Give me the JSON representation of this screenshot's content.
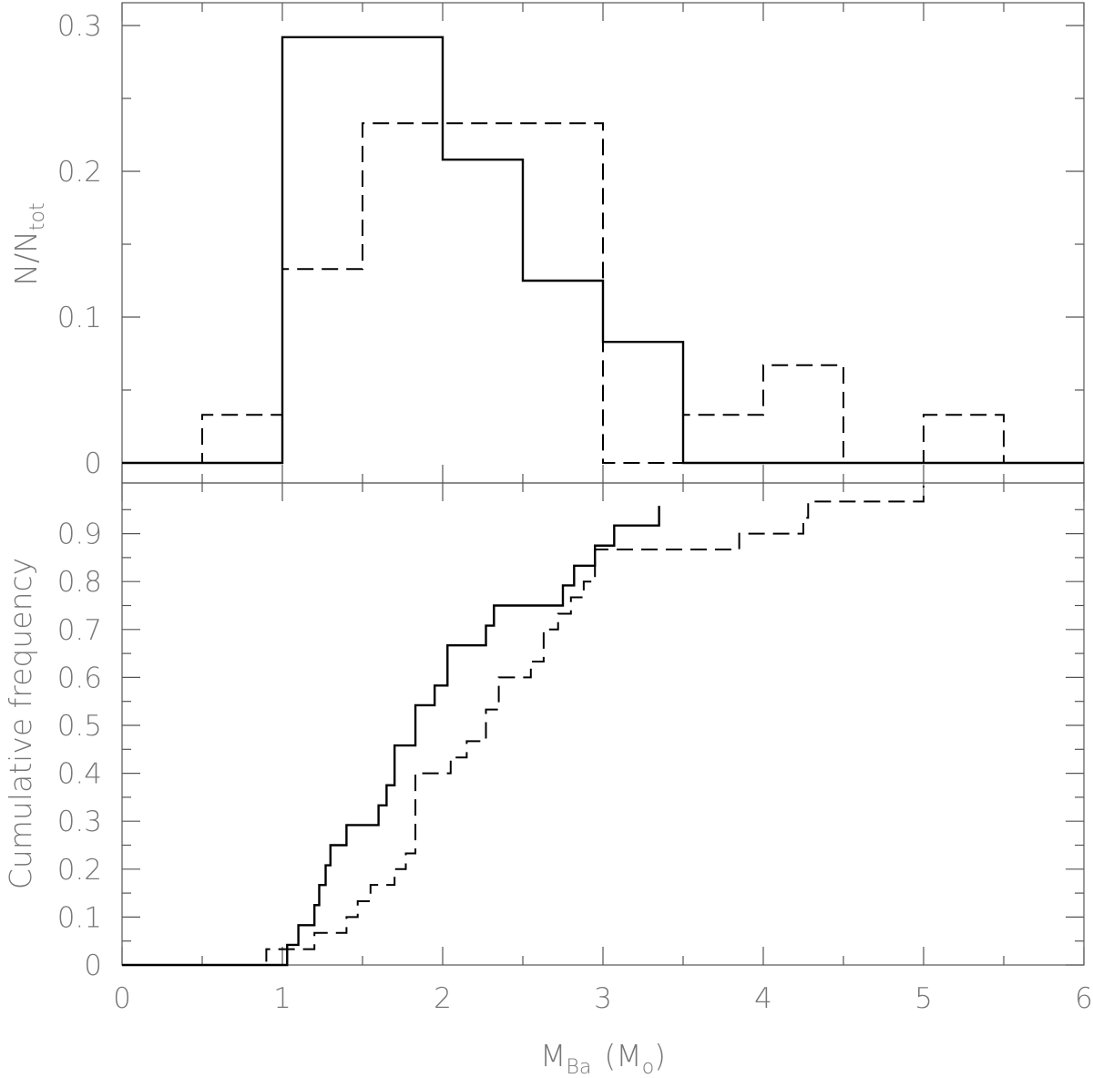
{
  "chart_data": [
    {
      "type": "step-histogram",
      "panel": "top",
      "xlim": [
        0,
        6
      ],
      "ylim": [
        0,
        0.3
      ],
      "ylabel_main": "N/N",
      "ylabel_sub": "tot",
      "yticks": [
        0,
        0.1,
        0.2,
        0.3
      ],
      "ytick_labels": [
        "0",
        "0.1",
        "0.2",
        "0.3"
      ],
      "bin_edges": [
        0,
        0.5,
        1.0,
        1.5,
        2.0,
        2.5,
        3.0,
        3.5,
        4.0,
        4.5,
        5.0,
        5.5,
        6.0
      ],
      "series": [
        {
          "style": "solid",
          "values": [
            0,
            0,
            0.292,
            0.292,
            0.208,
            0.125,
            0.083,
            0,
            0,
            0,
            0,
            0
          ]
        },
        {
          "style": "dashed",
          "values": [
            0,
            0.033,
            0.133,
            0.233,
            0.233,
            0.233,
            0,
            0.033,
            0.067,
            0,
            0.033,
            0
          ]
        }
      ]
    },
    {
      "type": "step-cdf",
      "panel": "bottom",
      "xlim": [
        0,
        6
      ],
      "ylim": [
        0,
        0.98
      ],
      "xlabel_main": "M",
      "xlabel_sub": "Ba",
      "xlabel_unit_open": "(M",
      "xlabel_unit_sub": "o",
      "xlabel_unit_close": ")",
      "ylabel": "Cumulative frequency",
      "xticks": [
        0,
        1,
        2,
        3,
        4,
        5,
        6
      ],
      "xtick_labels": [
        "0",
        "1",
        "2",
        "3",
        "4",
        "5",
        "6"
      ],
      "yticks": [
        0,
        0.1,
        0.2,
        0.3,
        0.4,
        0.5,
        0.6,
        0.7,
        0.8,
        0.9
      ],
      "ytick_labels": [
        "0",
        "0.1",
        "0.2",
        "0.3",
        "0.4",
        "0.5",
        "0.6",
        "0.7",
        "0.8",
        "0.9"
      ],
      "series": [
        {
          "style": "solid",
          "x": [
            0,
            1.03,
            1.1,
            1.2,
            1.23,
            1.27,
            1.3,
            1.4,
            1.6,
            1.65,
            1.7,
            1.83,
            1.95,
            2.03,
            2.27,
            2.32,
            2.75,
            2.82,
            2.95,
            3.07,
            3.35
          ],
          "y": [
            0,
            0.042,
            0.083,
            0.125,
            0.167,
            0.208,
            0.25,
            0.292,
            0.333,
            0.375,
            0.458,
            0.542,
            0.583,
            0.667,
            0.708,
            0.75,
            0.792,
            0.833,
            0.875,
            0.917,
            0.958
          ]
        },
        {
          "style": "dashed",
          "x": [
            0,
            0.9,
            1.07,
            1.2,
            1.4,
            1.47,
            1.55,
            1.7,
            1.77,
            1.83,
            2.05,
            2.15,
            2.27,
            2.35,
            2.55,
            2.63,
            2.72,
            2.8,
            2.88,
            2.95,
            3.85,
            4.25,
            4.28,
            5.0
          ],
          "y": [
            0,
            0.033,
            0.033,
            0.067,
            0.1,
            0.133,
            0.167,
            0.2,
            0.233,
            0.4,
            0.433,
            0.467,
            0.533,
            0.6,
            0.633,
            0.7,
            0.733,
            0.767,
            0.8,
            0.867,
            0.9,
            0.933,
            0.967,
            1.0
          ]
        }
      ]
    }
  ]
}
